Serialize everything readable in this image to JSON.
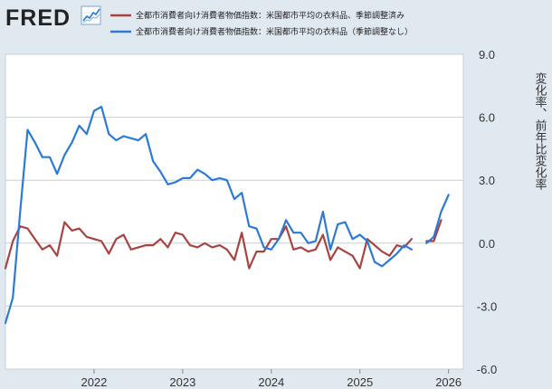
{
  "brand": {
    "name": "FRED",
    "logo_icon": "fred-graph-icon"
  },
  "chart_data": {
    "type": "line",
    "ylabel": "変化率、前年比変化率",
    "y_axis_side": "right",
    "ylim": [
      -6.0,
      9.0
    ],
    "yticks": [
      -6.0,
      -3.0,
      0.0,
      3.0,
      6.0,
      9.0
    ],
    "ytick_labels": [
      "-6.0",
      "-3.0",
      "0.0",
      "3.0",
      "6.0",
      "9.0"
    ],
    "xlim": [
      "2021-01",
      "2026-03"
    ],
    "xticks": [
      "2022-01",
      "2023-01",
      "2024-01",
      "2025-01",
      "2026-01"
    ],
    "xtick_labels": [
      "2022",
      "2023",
      "2024",
      "2025",
      "2026"
    ],
    "grid": "horizontal",
    "legend_position": "top",
    "series": [
      {
        "name": "全都市消費者向け消費者物価指数：米国都市平均の衣料品、季節調整済み",
        "color": "#a9433f",
        "points": [
          [
            "2021-01",
            -1.2
          ],
          [
            "2021-02",
            0.1
          ],
          [
            "2021-03",
            0.8
          ],
          [
            "2021-04",
            0.7
          ],
          [
            "2021-05",
            0.2
          ],
          [
            "2021-06",
            -0.3
          ],
          [
            "2021-07",
            -0.1
          ],
          [
            "2021-08",
            -0.6
          ],
          [
            "2021-09",
            1.0
          ],
          [
            "2021-10",
            0.6
          ],
          [
            "2021-11",
            0.7
          ],
          [
            "2021-12",
            0.3
          ],
          [
            "2022-01",
            0.2
          ],
          [
            "2022-02",
            0.1
          ],
          [
            "2022-03",
            -0.5
          ],
          [
            "2022-04",
            0.2
          ],
          [
            "2022-05",
            0.4
          ],
          [
            "2022-06",
            -0.3
          ],
          [
            "2022-07",
            -0.2
          ],
          [
            "2022-08",
            -0.1
          ],
          [
            "2022-09",
            -0.1
          ],
          [
            "2022-10",
            0.2
          ],
          [
            "2022-11",
            -0.2
          ],
          [
            "2022-12",
            0.5
          ],
          [
            "2023-01",
            0.4
          ],
          [
            "2023-02",
            -0.1
          ],
          [
            "2023-03",
            -0.2
          ],
          [
            "2023-04",
            0.0
          ],
          [
            "2023-05",
            -0.2
          ],
          [
            "2023-06",
            -0.1
          ],
          [
            "2023-07",
            -0.3
          ],
          [
            "2023-08",
            -0.8
          ],
          [
            "2023-09",
            0.5
          ],
          [
            "2023-10",
            -1.2
          ],
          [
            "2023-11",
            -0.4
          ],
          [
            "2023-12",
            -0.4
          ],
          [
            "2024-01",
            0.2
          ],
          [
            "2024-02",
            0.2
          ],
          [
            "2024-03",
            0.8
          ],
          [
            "2024-04",
            -0.3
          ],
          [
            "2024-05",
            -0.2
          ],
          [
            "2024-06",
            -0.4
          ],
          [
            "2024-07",
            -0.3
          ],
          [
            "2024-08",
            0.4
          ],
          [
            "2024-09",
            -0.8
          ],
          [
            "2024-10",
            -0.2
          ],
          [
            "2024-11",
            -0.4
          ],
          [
            "2024-12",
            -0.6
          ],
          [
            "2025-01",
            -1.2
          ],
          [
            "2025-02",
            0.2
          ],
          [
            "2025-03",
            -0.1
          ],
          [
            "2025-04",
            -0.4
          ],
          [
            "2025-05",
            -0.6
          ],
          [
            "2025-06",
            -0.1
          ],
          [
            "2025-07",
            -0.2
          ],
          [
            "2025-08",
            0.2
          ],
          [
            "2025-10",
            0.1
          ],
          [
            "2025-11",
            0.1
          ],
          [
            "2025-12",
            1.1
          ]
        ]
      },
      {
        "name": "全都市消費者向け消費者物価指数：米国都市平均の衣料品（季節調整なし）",
        "color": "#2b7bd6",
        "points": [
          [
            "2021-01",
            -3.8
          ],
          [
            "2021-02",
            -2.6
          ],
          [
            "2021-03",
            1.5
          ],
          [
            "2021-04",
            5.4
          ],
          [
            "2021-05",
            4.8
          ],
          [
            "2021-06",
            4.1
          ],
          [
            "2021-07",
            4.1
          ],
          [
            "2021-08",
            3.3
          ],
          [
            "2021-09",
            4.2
          ],
          [
            "2021-10",
            4.8
          ],
          [
            "2021-11",
            5.6
          ],
          [
            "2021-12",
            5.2
          ],
          [
            "2022-01",
            6.3
          ],
          [
            "2022-02",
            6.5
          ],
          [
            "2022-03",
            5.2
          ],
          [
            "2022-04",
            4.9
          ],
          [
            "2022-05",
            5.1
          ],
          [
            "2022-06",
            5.0
          ],
          [
            "2022-07",
            4.9
          ],
          [
            "2022-08",
            5.2
          ],
          [
            "2022-09",
            3.9
          ],
          [
            "2022-10",
            3.4
          ],
          [
            "2022-11",
            2.8
          ],
          [
            "2022-12",
            2.9
          ],
          [
            "2023-01",
            3.1
          ],
          [
            "2023-02",
            3.1
          ],
          [
            "2023-03",
            3.5
          ],
          [
            "2023-04",
            3.3
          ],
          [
            "2023-05",
            3.0
          ],
          [
            "2023-06",
            3.1
          ],
          [
            "2023-07",
            3.0
          ],
          [
            "2023-08",
            2.1
          ],
          [
            "2023-09",
            2.4
          ],
          [
            "2023-10",
            0.8
          ],
          [
            "2023-11",
            0.7
          ],
          [
            "2023-12",
            -0.2
          ],
          [
            "2024-01",
            -0.3
          ],
          [
            "2024-02",
            0.2
          ],
          [
            "2024-03",
            1.1
          ],
          [
            "2024-04",
            0.5
          ],
          [
            "2024-05",
            0.5
          ],
          [
            "2024-06",
            0.0
          ],
          [
            "2024-07",
            0.1
          ],
          [
            "2024-08",
            1.5
          ],
          [
            "2024-09",
            -0.3
          ],
          [
            "2024-10",
            0.9
          ],
          [
            "2024-11",
            1.0
          ],
          [
            "2024-12",
            0.2
          ],
          [
            "2025-01",
            0.4
          ],
          [
            "2025-02",
            0.1
          ],
          [
            "2025-03",
            -0.9
          ],
          [
            "2025-04",
            -1.1
          ],
          [
            "2025-05",
            -0.8
          ],
          [
            "2025-06",
            -0.5
          ],
          [
            "2025-07",
            -0.1
          ],
          [
            "2025-08",
            -0.3
          ],
          [
            "2025-10",
            0.0
          ],
          [
            "2025-11",
            0.3
          ],
          [
            "2025-12",
            1.5
          ],
          [
            "2026-01",
            2.3
          ]
        ]
      }
    ]
  }
}
